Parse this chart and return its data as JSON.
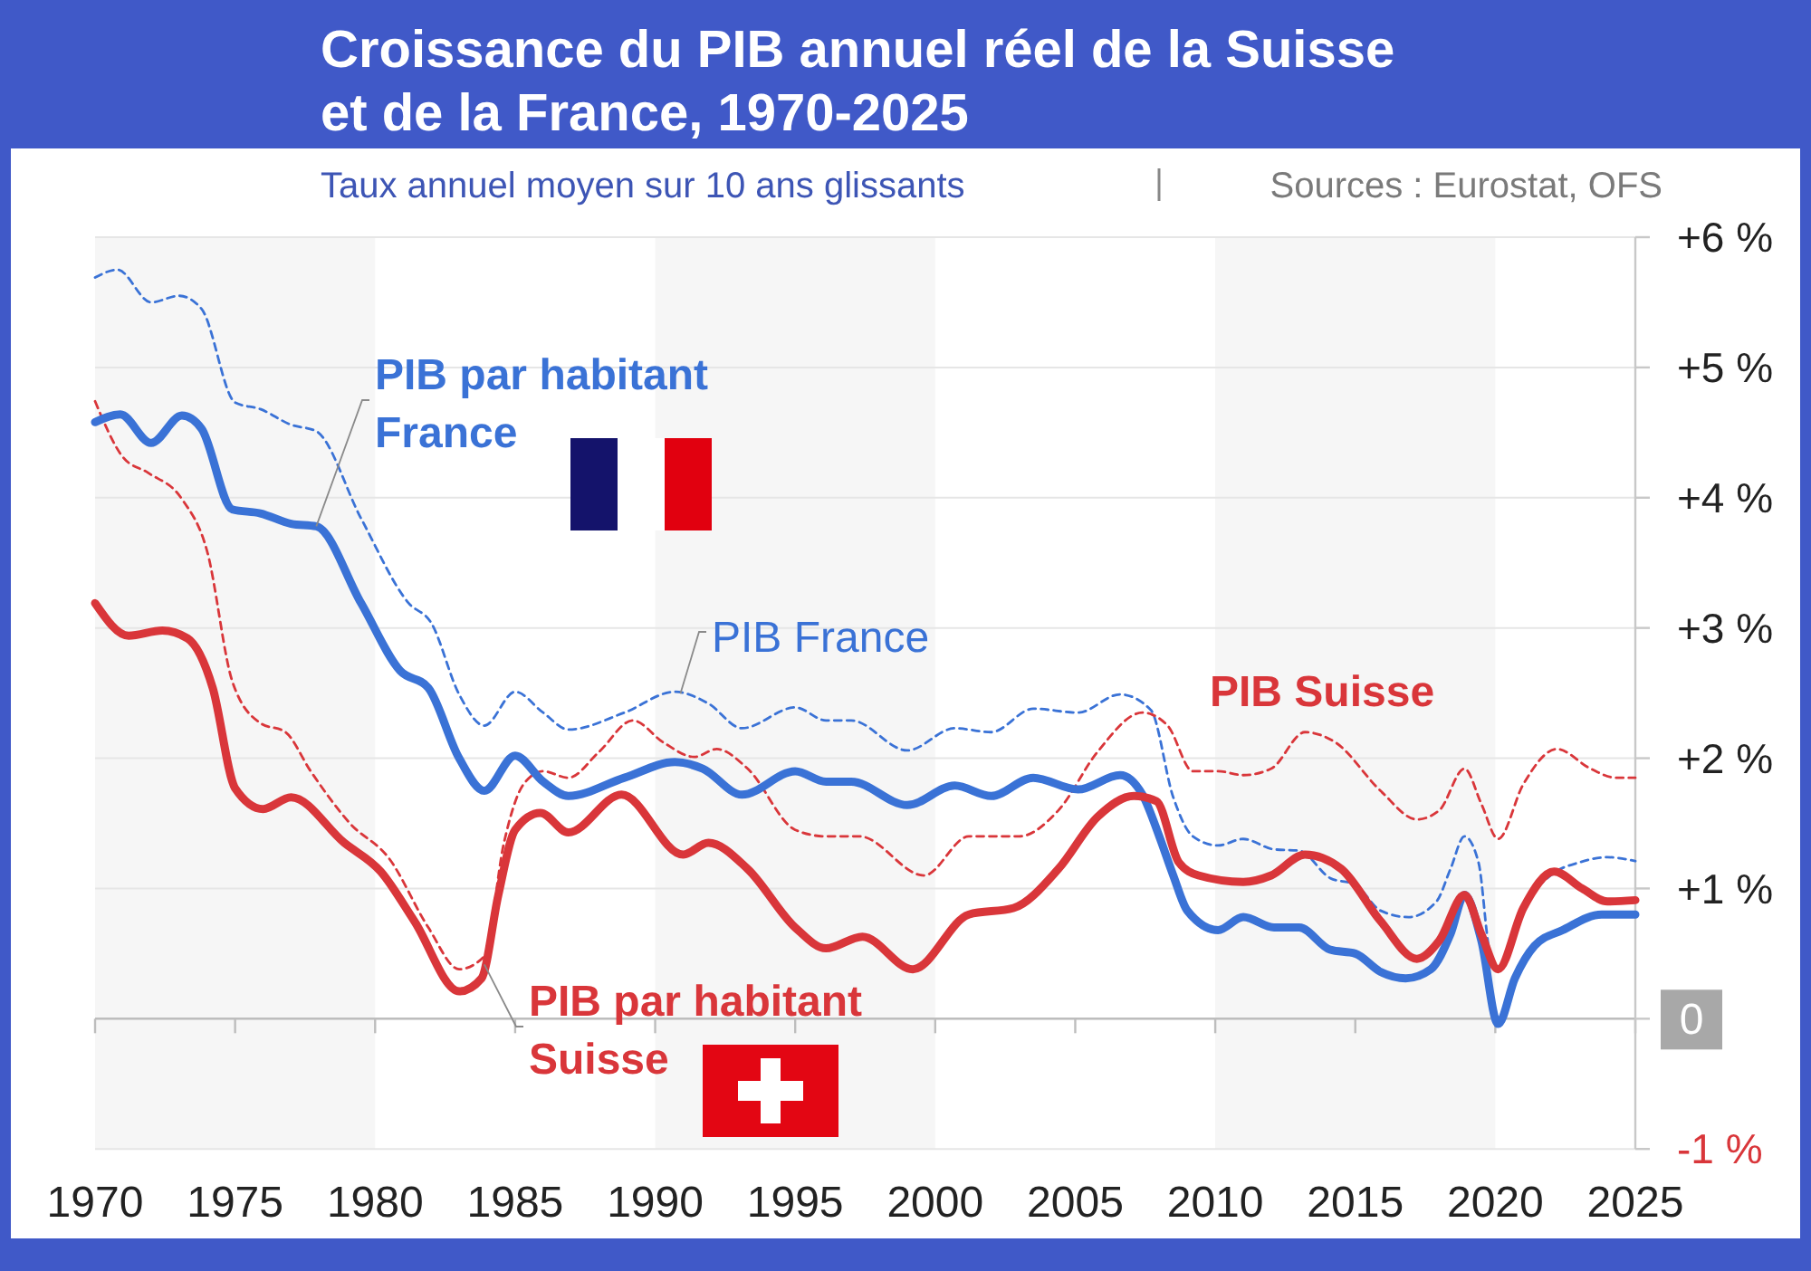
{
  "chart_data": {
    "type": "line",
    "title": "Croissance du PIB annuel réel de la Suisse et de la France, 1970-2025",
    "subtitle": "Taux annuel moyen sur 10 ans glissants",
    "annotations": [
      "Sources : Eurostat, OFS"
    ],
    "xlim": [
      1970,
      2025
    ],
    "xticks": [
      1970,
      1975,
      1980,
      1985,
      1990,
      1995,
      2000,
      2005,
      2010,
      2015,
      2020,
      2025
    ],
    "ylim": [
      -1,
      6
    ],
    "yticks": [
      {
        "value": 6,
        "label": "+6 %"
      },
      {
        "value": 5,
        "label": "+5 %"
      },
      {
        "value": 4,
        "label": "+4 %"
      },
      {
        "value": 3,
        "label": "+3 %"
      },
      {
        "value": 2,
        "label": "+2 %"
      },
      {
        "value": 1,
        "label": "+1 %"
      },
      0,
      {
        "value": -1,
        "label": "-1 %"
      }
    ],
    "grid": "y",
    "bands": [
      {
        "axis": "x",
        "from": 1970,
        "to": 1980,
        "color": "#f6f6f6"
      },
      {
        "axis": "x",
        "from": 1990,
        "to": 2000,
        "color": "#f6f6f6"
      },
      {
        "axis": "x",
        "from": 2010,
        "to": 2020,
        "color": "#f6f6f6"
      }
    ],
    "series": [
      {
        "name": "PIB France",
        "color": "#3a72d6",
        "line_style": "dashed",
        "x": [
          1970,
          1970.8,
          1972,
          1973,
          1973.8,
          1975,
          1975.9,
          1977,
          1977.9,
          1979.5,
          1981.2,
          1982,
          1983,
          1983.9,
          1985,
          1986,
          1986.9,
          1988.9,
          1990.7,
          1991.9,
          1993.1,
          1995,
          1996.1,
          1997,
          1999,
          2000.7,
          2002,
          2003.5,
          2005.1,
          2006.6,
          2007.7,
          2008.5,
          2009.2,
          2010.1,
          2011,
          2012.1,
          2013,
          2014.1,
          2015,
          2015.9,
          2016.9,
          2017.9,
          2018.4,
          2018.9,
          2019.4,
          2019.8,
          2020.1,
          2021,
          2022.1,
          2023,
          2024,
          2025
        ],
        "values": [
          5.69,
          5.75,
          5.5,
          5.55,
          5.45,
          4.73,
          4.68,
          4.56,
          4.51,
          3.84,
          3.19,
          3.04,
          2.49,
          2.25,
          2.51,
          2.35,
          2.22,
          2.35,
          2.51,
          2.42,
          2.23,
          2.39,
          2.29,
          2.29,
          2.06,
          2.23,
          2.2,
          2.38,
          2.35,
          2.49,
          2.37,
          1.7,
          1.4,
          1.33,
          1.38,
          1.3,
          1.29,
          1.08,
          1.03,
          0.83,
          0.78,
          0.9,
          1.15,
          1.4,
          1.2,
          0.51,
          0.38,
          0.85,
          1.12,
          1.2,
          1.24,
          1.21
        ]
      },
      {
        "name": "PIB Suisse",
        "color": "#d9363a",
        "line_style": "dashed",
        "x": [
          1970,
          1971,
          1971.9,
          1973.1,
          1974,
          1974.9,
          1975.9,
          1976.8,
          1977.7,
          1979.1,
          1980.5,
          1981.9,
          1983,
          1983.9,
          1984.6,
          1985.3,
          1986,
          1986.9,
          1988,
          1989.2,
          1990.3,
          1991.4,
          1992.2,
          1993.3,
          1995,
          1996.1,
          1997.3,
          1999.6,
          2001.2,
          2003,
          2004.4,
          2005.8,
          2007.4,
          2008.3,
          2009.2,
          2010.1,
          2011,
          2012,
          2013.2,
          2014.3,
          2015.9,
          2017.2,
          2018,
          2018.9,
          2019.5,
          2020.1,
          2021,
          2022.2,
          2023.4,
          2024.3,
          2025
        ],
        "values": [
          4.74,
          4.31,
          4.19,
          3.99,
          3.59,
          2.59,
          2.27,
          2.2,
          1.9,
          1.5,
          1.23,
          0.7,
          0.38,
          0.48,
          1.35,
          1.8,
          1.9,
          1.85,
          2.05,
          2.29,
          2.12,
          2.01,
          2.07,
          1.92,
          1.45,
          1.4,
          1.4,
          1.1,
          1.4,
          1.4,
          1.6,
          2.05,
          2.35,
          2.25,
          1.9,
          1.9,
          1.87,
          1.92,
          2.2,
          2.12,
          1.75,
          1.53,
          1.6,
          1.92,
          1.65,
          1.38,
          1.8,
          2.07,
          1.92,
          1.85,
          1.85
        ]
      },
      {
        "name": "PIB par habitant France",
        "color": "#3a72d6",
        "line_style": "solid",
        "x": [
          1970,
          1970.9,
          1972,
          1973.1,
          1973.8,
          1974.9,
          1975.9,
          1977,
          1977.9,
          1979.5,
          1980.9,
          1981.9,
          1983,
          1983.9,
          1985,
          1986,
          1986.9,
          1988.9,
          1990.7,
          1991.7,
          1993.1,
          1995,
          1996.1,
          1997,
          1999,
          2000.7,
          2002,
          2003.5,
          2005.1,
          2006.6,
          2007.4,
          2008,
          2008.5,
          2009,
          2010.1,
          2011,
          2012.1,
          2013,
          2014.1,
          2015,
          2015.9,
          2016.8,
          2017.7,
          2018.4,
          2018.9,
          2019.5,
          2020.1,
          2020.7,
          2021.4,
          2022.4,
          2023.8,
          2025
        ],
        "values": [
          4.58,
          4.64,
          4.42,
          4.63,
          4.53,
          3.91,
          3.88,
          3.8,
          3.78,
          3.19,
          2.67,
          2.54,
          2.0,
          1.75,
          2.02,
          1.82,
          1.71,
          1.85,
          1.97,
          1.92,
          1.72,
          1.9,
          1.82,
          1.82,
          1.64,
          1.79,
          1.71,
          1.85,
          1.76,
          1.87,
          1.72,
          1.4,
          1.1,
          0.83,
          0.68,
          0.78,
          0.7,
          0.7,
          0.53,
          0.5,
          0.36,
          0.31,
          0.38,
          0.65,
          0.95,
          0.6,
          -0.04,
          0.31,
          0.56,
          0.68,
          0.8,
          0.8
        ]
      },
      {
        "name": "PIB par habitant Suisse",
        "color": "#d9363a",
        "line_style": "solid",
        "x": [
          1970,
          1971.2,
          1972.4,
          1973.3,
          1974.2,
          1975,
          1976,
          1977,
          1978.9,
          1980.2,
          1981.4,
          1983,
          1983.8,
          1984.4,
          1985,
          1985.9,
          1986.9,
          1988.8,
          1991,
          1991.9,
          1993.3,
          1995,
          1996.1,
          1997.4,
          1999.2,
          2001.2,
          2002.8,
          2004.4,
          2005.8,
          2007.1,
          2007.9,
          2008.7,
          2009.4,
          2011,
          2012,
          2013.2,
          2014.5,
          2015.9,
          2017.2,
          2018,
          2018.9,
          2019.5,
          2020.1,
          2021,
          2022.1,
          2023.1,
          2024,
          2025
        ],
        "values": [
          3.19,
          2.94,
          2.98,
          2.92,
          2.54,
          1.77,
          1.61,
          1.7,
          1.35,
          1.13,
          0.75,
          0.21,
          0.31,
          0.95,
          1.45,
          1.58,
          1.43,
          1.72,
          1.26,
          1.35,
          1.15,
          0.7,
          0.54,
          0.63,
          0.38,
          0.8,
          0.85,
          1.15,
          1.55,
          1.71,
          1.67,
          1.2,
          1.1,
          1.05,
          1.1,
          1.26,
          1.15,
          0.75,
          0.46,
          0.6,
          0.95,
          0.65,
          0.38,
          0.85,
          1.13,
          1.0,
          0.9,
          0.91
        ]
      }
    ]
  }
}
